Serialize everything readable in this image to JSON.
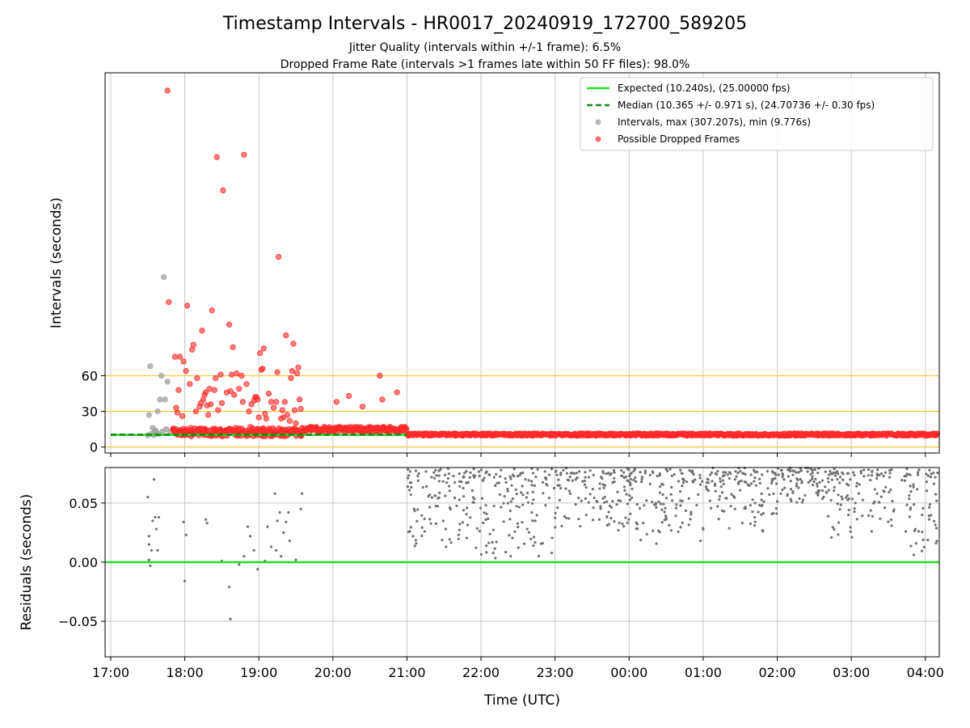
{
  "figure": {
    "title": "Timestamp Intervals - HR0017_20240919_172700_589205",
    "subtitle_1": "Jitter Quality (intervals within +/-1 frame): 6.5%",
    "subtitle_2": "Dropped Frame Rate (intervals >1 frames late within 50 FF files): 98.0%"
  },
  "colors": {
    "expected": "#22dd22",
    "median": "#118811",
    "interval": "#a0a0a0",
    "dropped": "#ff2a2a",
    "threshold": "#f5c842",
    "grid": "#c8c8c8",
    "residual": "#707070"
  },
  "chart_data": [
    {
      "type": "scatter",
      "panel": "top",
      "ylabel": "Intervals (seconds)",
      "xlabel": "",
      "x_unit": "time (UTC)",
      "xlim": [
        "17:00",
        "04:10"
      ],
      "ylim": [
        -5,
        315
      ],
      "yticks": [
        0,
        30,
        60
      ],
      "horizontal_lines": [
        0,
        30,
        60
      ],
      "grid": "vertical",
      "legend": {
        "position": "top-right",
        "entries": [
          "Expected (10.240s), (25.00000 fps)",
          "Median (10.365 +/- 0.971 s), (24.70736 +/- 0.30 fps)",
          "Intervals, max (307.207s), min (9.776s)",
          "Possible Dropped Frames"
        ]
      },
      "series": [
        {
          "name": "Expected (10.240s), (25.00000 fps)",
          "kind": "hline",
          "y": 10.24,
          "x_range": [
            "17:00",
            "21:00"
          ]
        },
        {
          "name": "Median (10.365 +/- 0.971 s), (24.70736 +/- 0.30 fps)",
          "kind": "hline-dashed",
          "y": 10.365,
          "x_range": [
            "17:00",
            "21:00"
          ]
        },
        {
          "name": "Intervals, max (307.207s), min (9.776s)",
          "kind": "points",
          "points": [
            [
              "17:30",
              10
            ],
            [
              "17:31",
              27
            ],
            [
              "17:32",
              68
            ],
            [
              "17:33",
              11
            ],
            [
              "17:34",
              16
            ],
            [
              "17:35",
              10
            ],
            [
              "17:36",
              14
            ],
            [
              "17:37",
              13
            ],
            [
              "17:38",
              30
            ],
            [
              "17:39",
              11
            ],
            [
              "17:40",
              40
            ],
            [
              "17:41",
              60
            ],
            [
              "17:42",
              13
            ],
            [
              "17:43",
              143
            ],
            [
              "17:44",
              40
            ],
            [
              "17:45",
              15
            ],
            [
              "17:46",
              55
            ],
            [
              "17:48",
              12
            ],
            [
              "18:40",
              11
            ],
            [
              "18:55",
              12
            ]
          ]
        },
        {
          "name": "Possible Dropped Frames",
          "kind": "points",
          "points": [
            [
              "17:46",
              300
            ],
            [
              "17:47",
              122
            ],
            [
              "17:52",
              76
            ],
            [
              "17:53",
              33
            ],
            [
              "17:54",
              29
            ],
            [
              "17:55",
              48
            ],
            [
              "17:56",
              76
            ],
            [
              "17:58",
              26
            ],
            [
              "17:59",
              72
            ],
            [
              "18:00",
              13
            ],
            [
              "18:01",
              64
            ],
            [
              "18:02",
              119
            ],
            [
              "18:04",
              53
            ],
            [
              "18:05",
              16
            ],
            [
              "18:06",
              82
            ],
            [
              "18:07",
              86
            ],
            [
              "18:09",
              30
            ],
            [
              "18:10",
              58
            ],
            [
              "18:12",
              34
            ],
            [
              "18:13",
              37
            ],
            [
              "18:14",
              98
            ],
            [
              "18:15",
              40
            ],
            [
              "18:16",
              44
            ],
            [
              "18:17",
              46
            ],
            [
              "18:18",
              35
            ],
            [
              "18:19",
              27
            ],
            [
              "18:20",
              49
            ],
            [
              "18:21",
              36
            ],
            [
              "18:22",
              115
            ],
            [
              "18:24",
              48
            ],
            [
              "18:25",
              58
            ],
            [
              "18:26",
              244
            ],
            [
              "18:27",
              31
            ],
            [
              "18:29",
              61
            ],
            [
              "18:30",
              37
            ],
            [
              "18:31",
              216
            ],
            [
              "18:34",
              46
            ],
            [
              "18:36",
              103
            ],
            [
              "18:37",
              47
            ],
            [
              "18:38",
              61
            ],
            [
              "18:39",
              84
            ],
            [
              "18:40",
              44
            ],
            [
              "18:41",
              16
            ],
            [
              "18:42",
              62
            ],
            [
              "18:44",
              49
            ],
            [
              "18:46",
              60
            ],
            [
              "18:47",
              38
            ],
            [
              "18:48",
              246
            ],
            [
              "18:50",
              53
            ],
            [
              "18:52",
              30
            ],
            [
              "18:53",
              17
            ],
            [
              "18:54",
              36
            ],
            [
              "18:56",
              39
            ],
            [
              "18:57",
              42
            ],
            [
              "18:58",
              42
            ],
            [
              "18:59",
              40
            ],
            [
              "19:00",
              25
            ],
            [
              "19:01",
              79
            ],
            [
              "19:02",
              65
            ],
            [
              "19:03",
              66
            ],
            [
              "19:04",
              83
            ],
            [
              "19:05",
              28
            ],
            [
              "19:06",
              24
            ],
            [
              "19:08",
              45
            ],
            [
              "19:10",
              38
            ],
            [
              "19:12",
              33
            ],
            [
              "19:14",
              38
            ],
            [
              "19:15",
              63
            ],
            [
              "19:16",
              160
            ],
            [
              "19:18",
              24
            ],
            [
              "19:19",
              31
            ],
            [
              "19:20",
              25
            ],
            [
              "19:21",
              38
            ],
            [
              "19:22",
              94
            ],
            [
              "19:23",
              27
            ],
            [
              "19:24",
              13
            ],
            [
              "19:25",
              22
            ],
            [
              "19:26",
              58
            ],
            [
              "19:27",
              64
            ],
            [
              "19:28",
              87
            ],
            [
              "19:29",
              31
            ],
            [
              "19:30",
              20
            ],
            [
              "19:31",
              62
            ],
            [
              "19:32",
              67
            ],
            [
              "19:33",
              40
            ],
            [
              "19:34",
              32
            ],
            [
              "19:42",
              16
            ],
            [
              "19:55",
              14
            ],
            [
              "20:03",
              38
            ],
            [
              "20:10",
              15
            ],
            [
              "20:13",
              43
            ],
            [
              "20:20",
              16
            ],
            [
              "20:24",
              34
            ],
            [
              "20:34",
              15
            ],
            [
              "20:38",
              60
            ],
            [
              "20:40",
              40
            ],
            [
              "20:45",
              16
            ],
            [
              "20:50",
              14
            ],
            [
              "20:52",
              46
            ],
            [
              "20:56",
              16
            ],
            [
              "20:58",
              15
            ]
          ],
          "bands": [
            {
              "from": "17:50",
              "to": "19:35",
              "y_min": 9,
              "y_max": 16
            },
            {
              "from": "19:35",
              "to": "21:00",
              "y_min": 13,
              "y_max": 17
            },
            {
              "from": "21:00",
              "to": "04:10",
              "y_min": 9.5,
              "y_max": 11.5
            }
          ]
        }
      ]
    },
    {
      "type": "scatter",
      "panel": "bottom",
      "ylabel": "Residuals (seconds)",
      "xlabel": "Time (UTC)",
      "xlim": [
        "17:00",
        "04:10"
      ],
      "ylim": [
        -0.08,
        0.08
      ],
      "yticks": [
        -0.05,
        0.0,
        0.05
      ],
      "xticks": [
        "17:00",
        "18:00",
        "19:00",
        "20:00",
        "21:00",
        "22:00",
        "23:00",
        "00:00",
        "01:00",
        "02:00",
        "03:00",
        "04:00"
      ],
      "grid": "both",
      "zero_line": 0,
      "series": [
        {
          "name": "",
          "kind": "points",
          "points": [
            [
              "17:30",
              0.055
            ],
            [
              "17:31",
              0.022
            ],
            [
              "17:31",
              0.015
            ],
            [
              "17:31",
              0.002
            ],
            [
              "17:32",
              -0.003
            ],
            [
              "17:33",
              0.01
            ],
            [
              "17:34",
              0.035
            ],
            [
              "17:35",
              0.07
            ],
            [
              "17:36",
              0.038
            ],
            [
              "17:37",
              0.028
            ],
            [
              "17:38",
              0.01
            ],
            [
              "17:39",
              0.038
            ],
            [
              "17:59",
              0.034
            ],
            [
              "18:00",
              -0.016
            ],
            [
              "18:01",
              0.023
            ],
            [
              "18:17",
              0.036
            ],
            [
              "18:18",
              0.033
            ],
            [
              "18:30",
              0.001
            ],
            [
              "18:36",
              -0.021
            ],
            [
              "18:37",
              -0.048
            ],
            [
              "18:44",
              -0.002
            ],
            [
              "18:48",
              0.005
            ],
            [
              "18:51",
              0.03
            ],
            [
              "18:53",
              0.022
            ],
            [
              "18:56",
              0.01
            ],
            [
              "18:59",
              -0.006
            ],
            [
              "19:05",
              0.001
            ],
            [
              "19:07",
              0.03
            ],
            [
              "19:10",
              0.013
            ],
            [
              "19:13",
              0.058
            ],
            [
              "19:14",
              0.01
            ],
            [
              "19:15",
              0.035
            ],
            [
              "19:17",
              0.042
            ],
            [
              "19:18",
              0.005
            ],
            [
              "19:20",
              0.025
            ],
            [
              "19:22",
              0.034
            ],
            [
              "19:24",
              0.042
            ],
            [
              "19:25",
              0.018
            ],
            [
              "19:30",
              0.002
            ],
            [
              "19:34",
              0.045
            ],
            [
              "19:35",
              0.058
            ]
          ],
          "dense_bands": [
            {
              "from": "21:00",
              "to": "22:00",
              "y_min": 0.01,
              "y_max": 0.08
            },
            {
              "from": "22:00",
              "to": "23:00",
              "y_min": 0.0,
              "y_max": 0.08
            },
            {
              "from": "23:00",
              "to": "00:00",
              "y_min": 0.025,
              "y_max": 0.08
            },
            {
              "from": "00:00",
              "to": "01:00",
              "y_min": 0.015,
              "y_max": 0.08
            },
            {
              "from": "01:00",
              "to": "02:00",
              "y_min": 0.025,
              "y_max": 0.08
            },
            {
              "from": "02:00",
              "to": "02:40",
              "y_min": 0.05,
              "y_max": 0.08
            },
            {
              "from": "02:40",
              "to": "03:35",
              "y_min": 0.02,
              "y_max": 0.08
            },
            {
              "from": "03:40",
              "to": "04:10",
              "y_min": 0.0,
              "y_max": 0.08
            }
          ]
        },
        {
          "name": "",
          "kind": "hline",
          "y": 0,
          "x_range": [
            "17:00",
            "04:10"
          ]
        }
      ]
    }
  ]
}
